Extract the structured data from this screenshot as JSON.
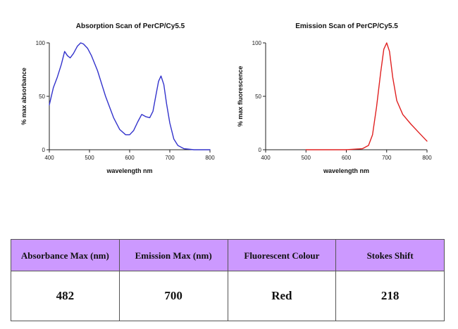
{
  "chart_data": [
    {
      "type": "line",
      "title": "Absorption Scan of PerCP/Cy5.5",
      "xlabel": "wavelength nm",
      "ylabel": "% max absorbance",
      "xlim": [
        400,
        800
      ],
      "ylim": [
        0,
        100
      ],
      "xticks": [
        "400",
        "500",
        "600",
        "700",
        "800"
      ],
      "yticks": [
        "0",
        "50",
        "100"
      ],
      "grid": false,
      "series": [
        {
          "color": "#3333cc",
          "x": [
            400,
            410,
            420,
            430,
            438,
            445,
            452,
            460,
            470,
            478,
            485,
            495,
            505,
            520,
            540,
            560,
            575,
            590,
            600,
            610,
            620,
            630,
            640,
            650,
            658,
            665,
            672,
            678,
            685,
            692,
            700,
            710,
            720,
            735,
            760,
            800
          ],
          "y": [
            42,
            58,
            68,
            80,
            92,
            88,
            86,
            90,
            97,
            100,
            99,
            95,
            88,
            74,
            50,
            30,
            19,
            14,
            14,
            18,
            26,
            33,
            31,
            30,
            36,
            50,
            64,
            69,
            61,
            43,
            25,
            10,
            4,
            1,
            0,
            0
          ]
        }
      ]
    },
    {
      "type": "line",
      "title": "Emission Scan of PerCP/Cy5.5",
      "xlabel": "wavelength nm",
      "ylabel": "% max fluorescence",
      "xlim": [
        400,
        800
      ],
      "ylim": [
        0,
        100
      ],
      "xticks": [
        "400",
        "500",
        "600",
        "700",
        "800"
      ],
      "yticks": [
        "0",
        "50",
        "100"
      ],
      "grid": false,
      "series": [
        {
          "color": "#e02020",
          "x": [
            500,
            550,
            600,
            640,
            655,
            665,
            675,
            685,
            693,
            700,
            707,
            715,
            725,
            740,
            760,
            780,
            800
          ],
          "y": [
            0,
            0,
            0,
            1,
            4,
            14,
            40,
            72,
            94,
            100,
            92,
            68,
            46,
            33,
            24,
            16,
            8
          ]
        }
      ]
    }
  ],
  "table": {
    "headers": [
      "Absorbance Max (nm)",
      "Emission Max (nm)",
      "Fluorescent Colour",
      "Stokes Shift"
    ],
    "values": [
      "482",
      "700",
      "Red",
      "218"
    ],
    "header_bg": "#cc99ff"
  }
}
